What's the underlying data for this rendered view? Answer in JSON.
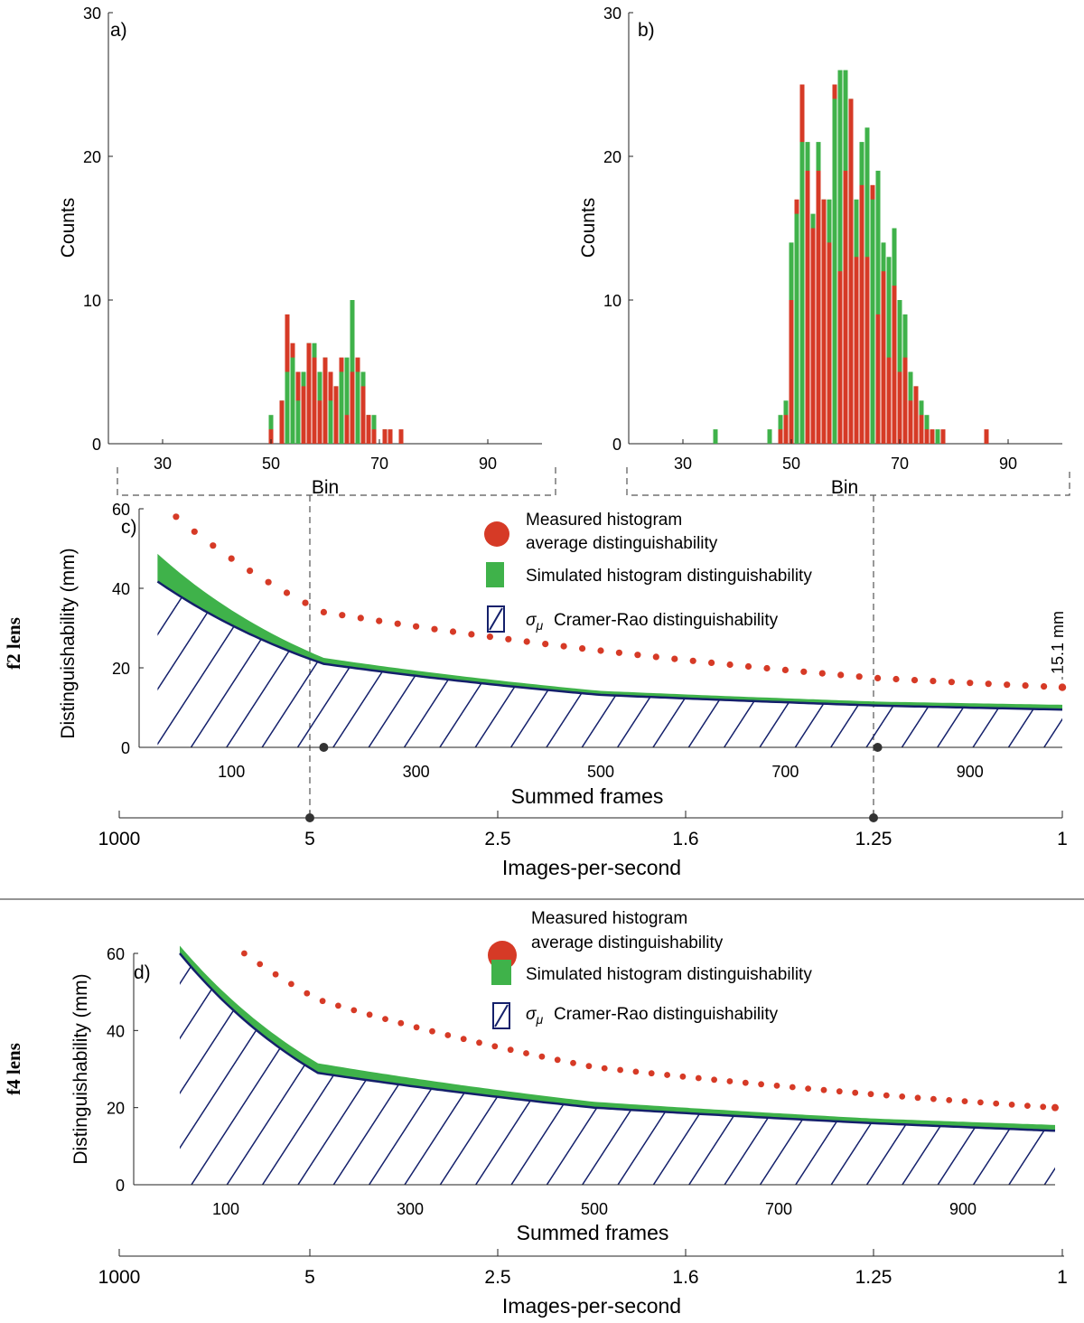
{
  "panels": {
    "a": {
      "label": "a)",
      "ylabel": "Counts",
      "xlabel": "Bin"
    },
    "b": {
      "label": "b)",
      "ylabel": "Counts",
      "xlabel": "Bin"
    },
    "c": {
      "label": "c)",
      "ylabel": "Distinguishability (mm)",
      "xlabel": "Summed frames",
      "xlabel2": "Images-per-second",
      "lens_label": "f2 lens",
      "annotation": "15.1 mm"
    },
    "d": {
      "label": "d)",
      "ylabel": "Distinguishability (mm)",
      "xlabel": "Summed frames",
      "xlabel2": "Images-per-second",
      "lens_label": "f4 lens"
    }
  },
  "legend": {
    "measured_line1": "Measured histogram",
    "measured_line2": "average distinguishability",
    "simulated": "Simulated histogram distinguishability",
    "cramer_rao": "Cramer-Rao distinguishability",
    "sigma_symbol": "σ",
    "sigma_sub": "μ"
  },
  "colors": {
    "measured": "#d63a26",
    "simulated": "#3fb24a",
    "cramer_rao": "#14206b"
  },
  "chart_data": [
    {
      "id": "a",
      "type": "bar",
      "title": "a)",
      "xlabel": "Bin",
      "ylabel": "Counts",
      "xlim": [
        20,
        100
      ],
      "ylim": [
        0,
        30
      ],
      "xticks": [
        30,
        50,
        70,
        90
      ],
      "yticks": [
        0,
        10,
        20,
        30
      ],
      "bins": [
        50,
        51,
        52,
        53,
        54,
        55,
        56,
        57,
        58,
        59,
        60,
        61,
        62,
        63,
        64,
        65,
        66,
        67,
        68,
        69,
        70,
        71,
        72,
        73,
        74
      ],
      "series": [
        {
          "name": "Measured",
          "color": "#d63a26",
          "values": [
            1,
            0,
            3,
            9,
            7,
            5,
            4,
            7,
            6,
            3,
            6,
            5,
            4,
            6,
            2,
            5,
            6,
            4,
            2,
            1,
            0,
            1,
            1,
            0,
            1
          ]
        },
        {
          "name": "Simulated",
          "color": "#3fb24a",
          "values": [
            2,
            0,
            3,
            5,
            6,
            3,
            5,
            7,
            7,
            5,
            6,
            3,
            4,
            5,
            6,
            10,
            5,
            5,
            2,
            2,
            0,
            1,
            0,
            0,
            0
          ]
        }
      ]
    },
    {
      "id": "b",
      "type": "bar",
      "title": "b)",
      "xlabel": "Bin",
      "ylabel": "Counts",
      "xlim": [
        20,
        100
      ],
      "ylim": [
        0,
        30
      ],
      "xticks": [
        30,
        50,
        70,
        90
      ],
      "yticks": [
        0,
        10,
        20,
        30
      ],
      "bins": [
        36,
        46,
        48,
        49,
        50,
        51,
        52,
        53,
        54,
        55,
        56,
        57,
        58,
        59,
        60,
        61,
        62,
        63,
        64,
        65,
        66,
        67,
        68,
        69,
        70,
        71,
        72,
        73,
        74,
        75,
        76,
        77,
        78,
        86
      ],
      "series": [
        {
          "name": "Measured",
          "color": "#d63a26",
          "values": [
            0,
            0,
            1,
            2,
            10,
            17,
            25,
            19,
            15,
            19,
            17,
            14,
            25,
            12,
            19,
            24,
            13,
            18,
            13,
            18,
            9,
            12,
            6,
            11,
            5,
            6,
            3,
            4,
            2,
            1,
            1,
            0,
            1,
            1
          ]
        },
        {
          "name": "Simulated",
          "color": "#3fb24a",
          "values": [
            1,
            1,
            2,
            3,
            14,
            16,
            21,
            21,
            16,
            21,
            17,
            17,
            24,
            26,
            26,
            24,
            17,
            21,
            22,
            17,
            19,
            14,
            13,
            15,
            10,
            9,
            5,
            4,
            3,
            2,
            0,
            1,
            0,
            0
          ]
        }
      ]
    },
    {
      "id": "c",
      "type": "line",
      "title": "c)",
      "xlabel": "Summed frames",
      "ylabel": "Distinguishability (mm)",
      "xlim": [
        0,
        1000
      ],
      "ylim": [
        0,
        60
      ],
      "xticks": [
        100,
        300,
        500,
        700,
        900
      ],
      "yticks": [
        0,
        20,
        40,
        60
      ],
      "x2label": "Images-per-second",
      "x2ticks": [
        "1000",
        "5",
        "2.5",
        "1.6",
        "1.25",
        "1"
      ],
      "marked_points": [
        200,
        800
      ],
      "series": [
        {
          "name": "Measured histogram average distinguishability",
          "style": "dots",
          "x": [
            40,
            200,
            800,
            1000
          ],
          "y": [
            58,
            34,
            17.4,
            15.1
          ]
        },
        {
          "name": "Simulated histogram distinguishability",
          "style": "band",
          "x": [
            0,
            200,
            500,
            800,
            1000
          ],
          "y_low": [
            45,
            21,
            13.2,
            10.5,
            9.5
          ],
          "y_high": [
            53,
            22.5,
            14.2,
            11.5,
            10.7
          ]
        },
        {
          "name": "σμ Cramer-Rao distinguishability",
          "style": "hatched",
          "x": [
            0,
            200,
            500,
            800,
            1000
          ],
          "y": [
            45,
            21,
            13.2,
            10.5,
            9.5
          ]
        }
      ],
      "annotation": {
        "text": "15.1 mm",
        "x": 1000,
        "y": 15.1
      }
    },
    {
      "id": "d",
      "type": "line",
      "title": "d)",
      "xlabel": "Summed frames",
      "ylabel": "Distinguishability (mm)",
      "xlim": [
        0,
        1000
      ],
      "ylim": [
        0,
        60
      ],
      "xticks": [
        100,
        300,
        500,
        700,
        900
      ],
      "yticks": [
        0,
        20,
        40,
        60
      ],
      "x2label": "Images-per-second",
      "x2ticks": [
        "1000",
        "5",
        "2.5",
        "1.6",
        "1.25",
        "1"
      ],
      "series": [
        {
          "name": "Measured histogram average distinguishability",
          "style": "dots",
          "x": [
            120,
            200,
            500,
            800,
            1000
          ],
          "y": [
            60,
            48,
            30.5,
            23.5,
            20
          ]
        },
        {
          "name": "Simulated histogram distinguishability",
          "style": "band",
          "x": [
            50,
            200,
            500,
            800,
            1000
          ],
          "y_low": [
            60,
            29,
            20,
            16,
            14
          ],
          "y_high": [
            62,
            31.5,
            21.5,
            17.2,
            15.5
          ]
        },
        {
          "name": "σμ Cramer-Rao distinguishability",
          "style": "hatched",
          "x": [
            50,
            200,
            500,
            800,
            1000
          ],
          "y": [
            60,
            29,
            20,
            16,
            14
          ]
        }
      ]
    }
  ]
}
